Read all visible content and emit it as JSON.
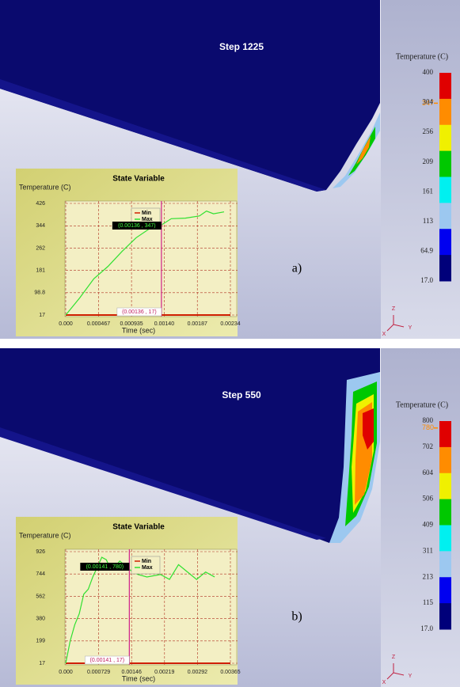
{
  "panels": [
    {
      "label": "a)",
      "step": "Step 1225",
      "triad": {
        "z": "Z",
        "x": "X",
        "y": "Y"
      },
      "colorbar": {
        "title": "Temperature (C)",
        "ticks": [
          400,
          347,
          304,
          256,
          209,
          161,
          113,
          64.9,
          {
            "value": 17,
            "label": "17.0"
          }
        ],
        "colors": [
          "#e00000",
          "#ff8c00",
          "#f0f000",
          "#00c800",
          "#00f0f0",
          "#9cc8f0",
          "#0000f0",
          "#00007a"
        ],
        "marker": 347
      },
      "plot": {
        "title": "State Variable",
        "ylabel": "Temperature (C)",
        "xlabel": "Time (sec)",
        "xlim": [
          0,
          0.00234
        ],
        "ylim": [
          17,
          426
        ],
        "xticks": [
          {
            "value": 0,
            "label": "0.000"
          },
          0.000467,
          0.000935,
          {
            "value": 0.0014,
            "label": "0.00140"
          },
          0.00187,
          0.00234
        ],
        "yticks": [
          426,
          344,
          262,
          181,
          98.8,
          17
        ],
        "series": [
          {
            "name": "Min",
            "color": "#d02000",
            "x": [
              0,
              0.00234
            ],
            "values": [
              17,
              17
            ]
          },
          {
            "name": "Max",
            "color": "#30e030",
            "x": [
              0,
              0.0002,
              0.0004,
              0.0006,
              0.0008,
              0.001,
              0.0012,
              0.00136,
              0.0015,
              0.0017,
              0.0019,
              0.002,
              0.0021,
              0.00225
            ],
            "values": [
              17,
              80,
              150,
              195,
              250,
              300,
              335,
              347,
              370,
              372,
              380,
              398,
              388,
              395
            ]
          }
        ],
        "cursor": {
          "x": 0.00136,
          "labels": [
            "(0.00136 , 347)",
            "(0.00136 , 17)"
          ]
        }
      }
    },
    {
      "label": "b)",
      "step": "Step  550",
      "triad": {
        "z": "Z",
        "x": "X",
        "y": "Y"
      },
      "colorbar": {
        "title": "Temperature (C)",
        "ticks": [
          800,
          780,
          702,
          604,
          506,
          409,
          311,
          213,
          115,
          {
            "value": 17,
            "label": "17.0"
          }
        ],
        "colors": [
          "#e00000",
          "#ff8c00",
          "#f0f000",
          "#00c800",
          "#00f0f0",
          "#9cc8f0",
          "#0000f0",
          "#00007a"
        ],
        "marker": 780
      },
      "plot": {
        "title": "State Variable",
        "ylabel": "Temperature (C)",
        "xlabel": "Time (sec)",
        "xlim": [
          0,
          0.00365
        ],
        "ylim": [
          17,
          926
        ],
        "xticks": [
          {
            "value": 0,
            "label": "0.000"
          },
          0.000729,
          0.00146,
          0.00219,
          0.00292,
          0.00365
        ],
        "yticks": [
          926,
          744,
          562,
          380,
          199,
          17
        ],
        "series": [
          {
            "name": "Min",
            "color": "#d02000",
            "x": [
              0,
              0.00365
            ],
            "values": [
              17,
              17
            ]
          },
          {
            "name": "Max",
            "color": "#30e030",
            "x": [
              0,
              0.0001,
              0.0002,
              0.0003,
              0.0004,
              0.0005,
              0.0006,
              0.0007,
              0.0008,
              0.0009,
              0.001,
              0.0011,
              0.0012,
              0.00141,
              0.0016,
              0.0018,
              0.0021,
              0.0023,
              0.0025,
              0.0027,
              0.0029,
              0.0031,
              0.0033
            ],
            "values": [
              17,
              200,
              330,
              420,
              580,
              620,
              720,
              800,
              880,
              860,
              780,
              810,
              850,
              780,
              740,
              720,
              740,
              700,
              820,
              760,
              700,
              760,
              720
            ]
          }
        ],
        "cursor": {
          "x": 0.00141,
          "labels": [
            "(0.00141 , 780)",
            "(0.00141 , 17)"
          ]
        }
      }
    }
  ]
}
